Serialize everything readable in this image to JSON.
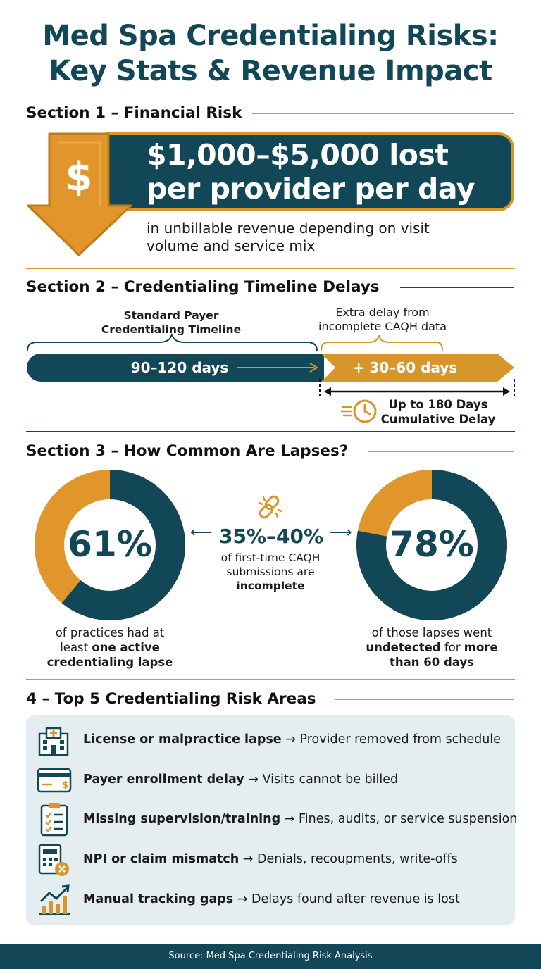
{
  "title": {
    "line1": "Med Spa Credentialing Risks:",
    "line2": "Key Stats & Revenue Impact"
  },
  "section1": {
    "heading": "Section 1 – Financial Risk",
    "icon_glyph": "$",
    "headline_line1": "$1,000–$5,000 lost",
    "headline_line2": "per provider per day",
    "subtext_line1": "in unbillable revenue depending on visit",
    "subtext_line2": "volume and service mix"
  },
  "section2": {
    "heading": "Section 2 – Credentialing Timeline Delays",
    "standard_label_line1": "Standard Payer",
    "standard_label_line2": "Credentialing Timeline",
    "extra_label_line1": "Extra delay from",
    "extra_label_line2": "incomplete CAQH data",
    "standard_days": "90–120 days",
    "extra_days": "+ 30–60 days",
    "cumulative_line1": "Up to 180 Days",
    "cumulative_line2": "Cumulative Delay"
  },
  "section3": {
    "heading": "Section 3 – How Common Are Lapses?",
    "left_pct": "61%",
    "left_value": 61,
    "left_caption_line1": "of practices had at",
    "left_caption_line2_plain": "least ",
    "left_caption_line2_bold": "one active",
    "left_caption_line3_bold": "credentialing lapse",
    "center_pct": "35%–40%",
    "center_line1": "of first-time CAQH",
    "center_line2": "submissions are",
    "center_line3_bold": "incomplete",
    "right_pct": "78%",
    "right_value": 78,
    "right_caption_line1": "of those lapses went",
    "right_caption_line2_bold1": "undetected",
    "right_caption_line2_plain": " for ",
    "right_caption_line2_bold2": "more",
    "right_caption_line3_bold": "than 60 days"
  },
  "section4": {
    "heading": "4 – Top 5 Credentialing Risk Areas",
    "items": [
      {
        "icon": "hospital-building-icon",
        "bold": "License or malpractice lapse",
        "rest": " → Provider removed from schedule"
      },
      {
        "icon": "credit-card-icon",
        "bold": "Payer enrollment delay",
        "rest": " → Visits cannot be billed"
      },
      {
        "icon": "clipboard-checklist-icon",
        "bold": "Missing supervision/training",
        "rest": " → Fines, audits, or service suspension"
      },
      {
        "icon": "calculator-error-icon",
        "bold": "NPI or claim mismatch",
        "rest": " → Denials, recoupments, write-offs"
      },
      {
        "icon": "growth-chart-icon",
        "bold": "Manual tracking gaps",
        "rest": " → Delays found after revenue is lost"
      }
    ]
  },
  "footer": {
    "source": "Source: Med Spa Credentialing Risk Analysis"
  },
  "colors": {
    "navy": "#124757",
    "gold": "#d7962a",
    "panel": "#e4edef"
  }
}
